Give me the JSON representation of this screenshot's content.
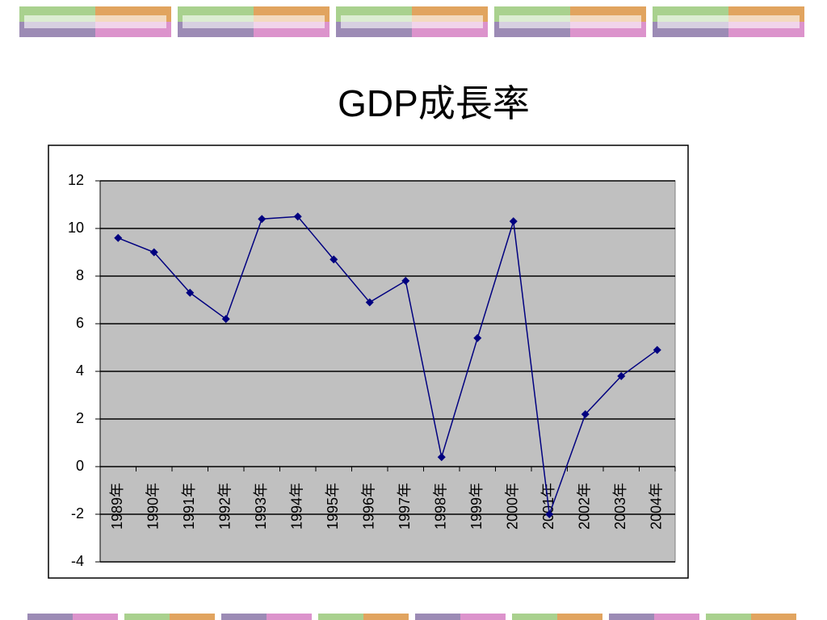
{
  "chart_data": {
    "type": "line",
    "title": "GDP成長率",
    "categories": [
      "1989年",
      "1990年",
      "1991年",
      "1992年",
      "1993年",
      "1994年",
      "1995年",
      "1996年",
      "1997年",
      "1998年",
      "1999年",
      "2000年",
      "2001年",
      "2002年",
      "2003年",
      "2004年"
    ],
    "values": [
      9.6,
      9.0,
      7.3,
      6.2,
      10.4,
      10.5,
      8.7,
      6.9,
      7.8,
      0.4,
      5.4,
      10.3,
      -2.0,
      2.2,
      3.8,
      4.9
    ],
    "color": "#000080",
    "ylim": [
      -4,
      12
    ],
    "yticks": [
      -4,
      -2,
      0,
      2,
      4,
      6,
      8,
      10,
      12
    ],
    "grid": true
  }
}
